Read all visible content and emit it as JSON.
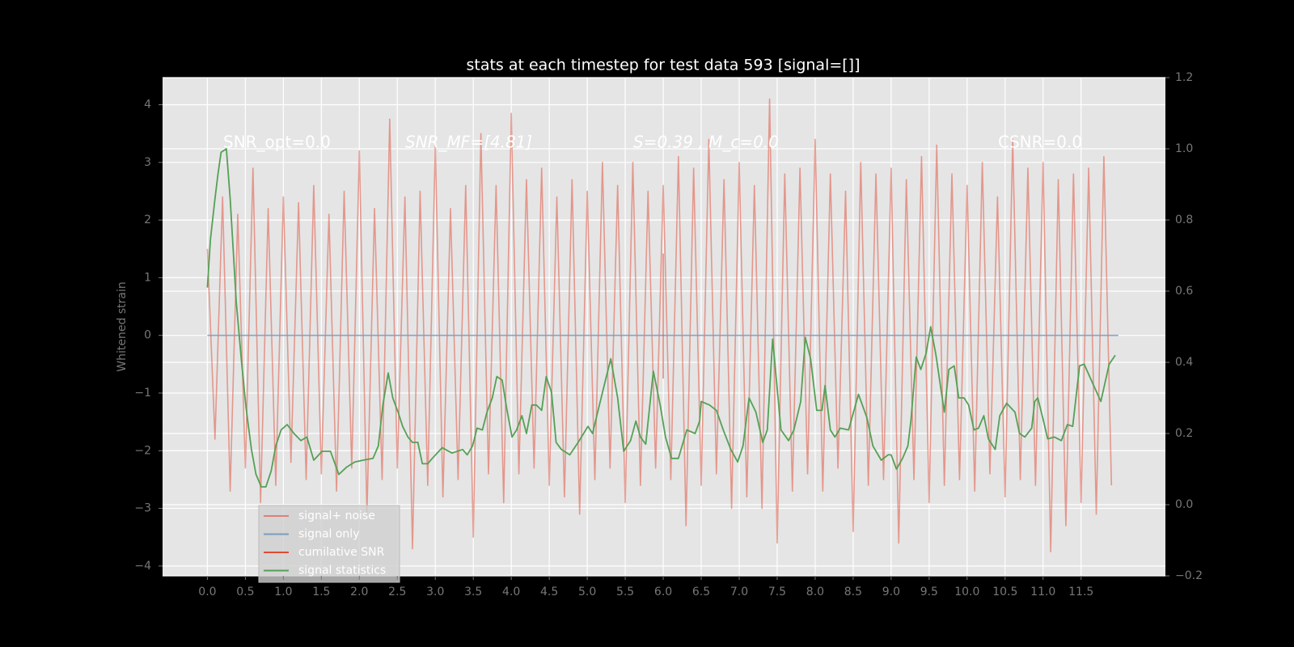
{
  "chart_data": {
    "type": "line",
    "title": "stats at each timestep for test data 593 [signal=[]]",
    "y_label": "Whitened strain",
    "annotations": [
      "SNR_opt=0.0",
      "SNR_MF=[4.81]",
      "S=0.39 , M_c=0.0",
      "CSNR=0.0"
    ],
    "grid": true,
    "xlim": [
      -0.59,
      12.61
    ],
    "ylim": [
      -4.17,
      4.47
    ],
    "y2lim": [
      -0.2,
      1.2
    ],
    "xticks": [
      {
        "value": 0,
        "label": "0.0"
      },
      0.5,
      {
        "value": 1,
        "label": "1.0"
      },
      1.5,
      {
        "value": 2,
        "label": "2.0"
      },
      2.5,
      {
        "value": 3,
        "label": "3.0"
      },
      3.5,
      {
        "value": 4,
        "label": "4.0"
      },
      4.5,
      {
        "value": 5,
        "label": "5.0"
      },
      5.5,
      {
        "value": 6,
        "label": "6.0"
      },
      6.5,
      {
        "value": 7,
        "label": "7.0"
      },
      7.5,
      {
        "value": 8,
        "label": "8.0"
      },
      8.5,
      {
        "value": 9,
        "label": "9.0"
      },
      9.5,
      {
        "value": 10,
        "label": "10.0"
      },
      10.5,
      {
        "value": 11,
        "label": "11.0"
      },
      11.5
    ],
    "yticks": [
      {
        "value": -4,
        "label": "−4"
      },
      {
        "value": -3,
        "label": "−3"
      },
      {
        "value": -2,
        "label": "−2"
      },
      {
        "value": -1,
        "label": "−1"
      },
      0,
      1,
      2,
      3,
      4
    ],
    "y2ticks": [
      {
        "value": -0.2,
        "label": "−0.2"
      },
      {
        "value": 0,
        "label": "0.0"
      },
      0.2,
      0.4,
      0.6,
      0.8,
      {
        "value": 1,
        "label": "1.0"
      },
      1.2
    ],
    "series": [
      {
        "name": "signal+ noise",
        "color": "#E24A33",
        "x": [
          0,
          0.1,
          0.2,
          0.3,
          0.4,
          0.5,
          0.6,
          0.7,
          0.8,
          0.9,
          1,
          1.1,
          1.2,
          1.3,
          1.4,
          1.5,
          1.6,
          1.7,
          1.8,
          1.9,
          2,
          2.1,
          2.2,
          2.3,
          2.4,
          2.5,
          2.6,
          2.7,
          2.8,
          2.9,
          3,
          3.1,
          3.2,
          3.3,
          3.4,
          3.5,
          3.6,
          3.7,
          3.8,
          3.9,
          4,
          4.1,
          4.2,
          4.3,
          4.4,
          4.5,
          4.6,
          4.7,
          4.8,
          4.9,
          5,
          5.1,
          5.2,
          5.3,
          5.4,
          5.5,
          5.6,
          5.7,
          5.8,
          5.9,
          6,
          6.1,
          6.2,
          6.3,
          6.4,
          6.5,
          6.6,
          6.7,
          6.8,
          6.9,
          7,
          7.1,
          7.2,
          7.3,
          7.4,
          7.5,
          7.6,
          7.7,
          7.8,
          7.9,
          8,
          8.1,
          8.2,
          8.3,
          8.4,
          8.5,
          8.6,
          8.7,
          8.8,
          8.9,
          9,
          9.1,
          9.2,
          9.3,
          9.4,
          9.5,
          9.6,
          9.7,
          9.8,
          9.9,
          10,
          10.1,
          10.2,
          10.3,
          10.4,
          10.5,
          10.6,
          10.7,
          10.8,
          10.9,
          11,
          11.1,
          11.2,
          11.3,
          11.4,
          11.5,
          11.6,
          11.7,
          11.8,
          11.9
        ],
        "values": [
          1.5,
          -1.8,
          2.4,
          -2.7,
          2.1,
          -2.3,
          2.9,
          -2.9,
          2.2,
          -2.6,
          2.4,
          -2.2,
          2.3,
          -2.5,
          2.6,
          -2.4,
          2.1,
          -2.7,
          2.5,
          -2.3,
          3.2,
          -3.1,
          2.2,
          -2.5,
          3.75,
          -2.3,
          2.4,
          -3.7,
          2.5,
          -2.6,
          3.3,
          -2.8,
          2.2,
          -2.5,
          2.6,
          -3.5,
          3.5,
          -2.4,
          2.6,
          -2.9,
          3.85,
          -2.4,
          2.7,
          -2.3,
          2.9,
          -2.6,
          2.4,
          -2.8,
          2.7,
          -3.1,
          2.5,
          -2.5,
          3.0,
          -2.3,
          2.6,
          -2.9,
          3.0,
          -2.6,
          2.5,
          -2.3,
          2.6,
          -2.5,
          3.1,
          -3.3,
          2.9,
          -2.6,
          3.4,
          -2.4,
          2.7,
          -3.0,
          3.0,
          -2.8,
          2.6,
          -3.0,
          4.1,
          -3.6,
          2.8,
          -2.7,
          2.9,
          -2.4,
          3.4,
          -2.7,
          2.8,
          -2.3,
          2.5,
          -3.4,
          3.0,
          -2.6,
          2.8,
          -2.5,
          2.9,
          -3.6,
          2.7,
          -2.5,
          3.1,
          -2.9,
          3.3,
          -2.6,
          2.8,
          -2.5,
          2.6,
          -2.7,
          3.0,
          -2.4,
          2.4,
          -2.8,
          3.4,
          -2.5,
          2.9,
          -2.6,
          3.0,
          -3.75,
          2.7,
          -3.3,
          2.8,
          -2.9,
          2.9,
          -3.1,
          3.1,
          -2.6
        ]
      },
      {
        "name": "signal only",
        "color": "#7A9CC0",
        "x": [
          0,
          11.99
        ],
        "values": [
          0,
          0
        ]
      },
      {
        "name": "cumilative SNR",
        "color": "#E24A33",
        "x": [
          6.0,
          6.0
        ],
        "values": [
          1.42,
          -0.75
        ]
      },
      {
        "name": "signal statistics",
        "color": "#55A055",
        "axis": "y2",
        "x": [
          0,
          0.04,
          0.1,
          0.14,
          0.18,
          0.25,
          0.3,
          0.38,
          0.45,
          0.51,
          0.58,
          0.64,
          0.71,
          0.77,
          0.84,
          0.9,
          0.97,
          1.05,
          1.14,
          1.23,
          1.31,
          1.4,
          1.51,
          1.62,
          1.73,
          1.83,
          1.94,
          2.05,
          2.18,
          2.25,
          2.31,
          2.38,
          2.44,
          2.51,
          2.57,
          2.64,
          2.7,
          2.77,
          2.83,
          2.9,
          2.96,
          3.09,
          3.22,
          3.36,
          3.42,
          3.49,
          3.55,
          3.62,
          3.68,
          3.75,
          3.81,
          3.88,
          3.94,
          4.01,
          4.07,
          4.14,
          4.2,
          4.27,
          4.33,
          4.4,
          4.46,
          4.53,
          4.59,
          4.66,
          4.77,
          4.88,
          5.01,
          5.07,
          5.16,
          5.24,
          5.31,
          5.4,
          5.48,
          5.57,
          5.64,
          5.7,
          5.77,
          5.87,
          5.96,
          6.03,
          6.11,
          6.2,
          6.31,
          6.42,
          6.48,
          6.5,
          6.61,
          6.7,
          6.79,
          6.89,
          6.98,
          7.05,
          7.13,
          7.22,
          7.31,
          7.37,
          7.44,
          7.55,
          7.65,
          7.72,
          7.81,
          7.87,
          7.94,
          8.02,
          8.09,
          8.13,
          8.2,
          8.26,
          8.33,
          8.44,
          8.57,
          8.68,
          8.76,
          8.87,
          8.96,
          9.0,
          9.07,
          9.15,
          9.22,
          9.26,
          9.33,
          9.39,
          9.46,
          9.52,
          9.59,
          9.7,
          9.76,
          9.83,
          9.89,
          9.96,
          10.02,
          10.09,
          10.15,
          10.22,
          10.28,
          10.37,
          10.43,
          10.52,
          10.63,
          10.69,
          10.76,
          10.85,
          10.89,
          10.93,
          11.0,
          11.06,
          11.15,
          11.24,
          11.32,
          11.39,
          11.48,
          11.54,
          11.76,
          11.87,
          11.95
        ],
        "values": [
          0.61,
          0.745,
          0.86,
          0.93,
          0.99,
          1.0,
          0.86,
          0.57,
          0.4,
          0.27,
          0.155,
          0.085,
          0.05,
          0.05,
          0.095,
          0.165,
          0.21,
          0.225,
          0.2,
          0.18,
          0.19,
          0.125,
          0.15,
          0.15,
          0.085,
          0.105,
          0.12,
          0.125,
          0.13,
          0.165,
          0.28,
          0.37,
          0.3,
          0.26,
          0.22,
          0.19,
          0.175,
          0.175,
          0.115,
          0.115,
          0.13,
          0.16,
          0.145,
          0.155,
          0.14,
          0.165,
          0.215,
          0.21,
          0.26,
          0.3,
          0.36,
          0.35,
          0.27,
          0.19,
          0.21,
          0.25,
          0.2,
          0.28,
          0.28,
          0.265,
          0.36,
          0.315,
          0.175,
          0.155,
          0.14,
          0.175,
          0.22,
          0.2,
          0.28,
          0.35,
          0.41,
          0.3,
          0.15,
          0.18,
          0.235,
          0.19,
          0.17,
          0.375,
          0.28,
          0.19,
          0.13,
          0.13,
          0.21,
          0.2,
          0.235,
          0.29,
          0.28,
          0.265,
          0.21,
          0.155,
          0.12,
          0.165,
          0.3,
          0.26,
          0.175,
          0.21,
          0.465,
          0.21,
          0.18,
          0.21,
          0.29,
          0.47,
          0.41,
          0.265,
          0.265,
          0.335,
          0.21,
          0.19,
          0.215,
          0.21,
          0.31,
          0.245,
          0.165,
          0.125,
          0.14,
          0.14,
          0.1,
          0.13,
          0.165,
          0.235,
          0.415,
          0.38,
          0.425,
          0.5,
          0.42,
          0.26,
          0.38,
          0.39,
          0.3,
          0.3,
          0.28,
          0.21,
          0.215,
          0.25,
          0.185,
          0.155,
          0.25,
          0.285,
          0.26,
          0.2,
          0.19,
          0.215,
          0.29,
          0.3,
          0.24,
          0.185,
          0.19,
          0.18,
          0.225,
          0.22,
          0.39,
          0.395,
          0.29,
          0.395,
          0.42
        ]
      }
    ]
  }
}
